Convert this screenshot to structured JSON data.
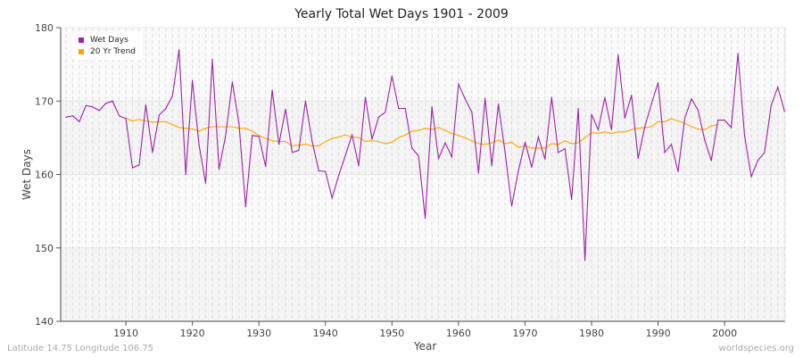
{
  "chart_data": {
    "type": "line",
    "title": "Yearly Total Wet Days 1901 - 2009",
    "xlabel": "Year",
    "ylabel": "Wet Days",
    "xlim": [
      1901,
      2009
    ],
    "ylim": [
      140,
      180
    ],
    "yticks": [
      140,
      150,
      160,
      170,
      180
    ],
    "xticks": [
      1910,
      1920,
      1930,
      1940,
      1950,
      1960,
      1970,
      1980,
      1990,
      2000
    ],
    "grid": true,
    "legend_position": "top-left",
    "series": [
      {
        "name": "Wet Days",
        "color": "#a020a8",
        "x_start": 1901,
        "values": [
          167.8,
          168.0,
          167.2,
          169.4,
          169.2,
          168.7,
          169.7,
          170.0,
          168.0,
          167.6,
          160.9,
          161.3,
          169.5,
          163.0,
          168.1,
          169.0,
          170.7,
          177.0,
          160.0,
          172.8,
          164.0,
          158.8,
          175.7,
          160.7,
          165.3,
          172.6,
          167.0,
          155.6,
          165.3,
          165.2,
          161.1,
          171.5,
          164.1,
          168.9,
          163.0,
          163.3,
          170.0,
          164.5,
          160.5,
          160.4,
          156.8,
          159.9,
          162.6,
          165.4,
          161.2,
          170.5,
          164.8,
          167.8,
          168.5,
          173.4,
          169.0,
          169.0,
          163.6,
          162.5,
          154.0,
          169.2,
          162.2,
          164.3,
          162.4,
          172.3,
          170.3,
          168.5,
          160.2,
          170.4,
          161.2,
          169.6,
          163.0,
          155.7,
          160.5,
          164.4,
          161.0,
          165.1,
          162.1,
          170.5,
          163.0,
          163.5,
          156.6,
          169.0,
          148.3,
          168.2,
          166.1,
          170.5,
          166.1,
          176.3,
          167.7,
          170.8,
          162.2,
          166.5,
          169.6,
          172.5,
          163.0,
          164.1,
          160.4,
          167.6,
          170.3,
          168.8,
          164.7,
          161.9,
          167.4,
          167.4,
          166.4,
          176.5,
          165.3,
          159.7,
          161.9,
          163.0,
          169.4,
          171.9,
          168.6
        ]
      },
      {
        "name": "20 Yr Trend",
        "color": "#ffa500",
        "x_start": 1910,
        "values": [
          167.7,
          167.3,
          167.5,
          167.3,
          167.1,
          167.2,
          167.2,
          166.8,
          166.4,
          166.3,
          166.2,
          165.9,
          166.3,
          166.5,
          166.5,
          166.5,
          166.5,
          166.3,
          166.3,
          165.9,
          165.3,
          164.9,
          164.6,
          164.5,
          164.5,
          163.9,
          164.0,
          164.1,
          163.9,
          163.9,
          164.5,
          164.9,
          165.1,
          165.4,
          165.1,
          165.0,
          164.5,
          164.6,
          164.5,
          164.2,
          164.4,
          165.0,
          165.4,
          165.9,
          166.0,
          166.3,
          166.1,
          166.4,
          166.0,
          165.6,
          165.3,
          165.0,
          164.6,
          164.2,
          164.1,
          164.3,
          164.7,
          164.2,
          164.4,
          163.7,
          163.9,
          163.6,
          163.6,
          163.6,
          164.2,
          164.1,
          164.6,
          164.2,
          164.3,
          165.0,
          165.7,
          165.6,
          165.8,
          165.6,
          165.8,
          165.8,
          166.1,
          166.3,
          166.4,
          166.5,
          167.2,
          167.2,
          167.6,
          167.3,
          167.0,
          166.5,
          166.2,
          166.1,
          166.6,
          166.8
        ]
      }
    ]
  },
  "footer": {
    "location": "Latitude 14.75 Longitude 106.75",
    "source": "worldspecies.org"
  }
}
